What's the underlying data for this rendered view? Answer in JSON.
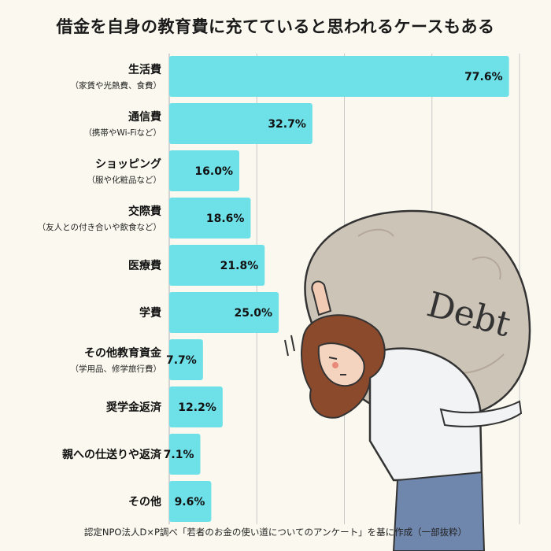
{
  "chart_data": {
    "type": "bar",
    "orientation": "horizontal",
    "title": "借金を自身の教育費に充てていると思われるケースもある",
    "categories": [
      {
        "label": "生活費",
        "note": "（家賃や光熱費、食費）"
      },
      {
        "label": "通信費",
        "note": "（携帯やWi-Fiなど）"
      },
      {
        "label": "ショッピング",
        "note": "（服や化粧品など）"
      },
      {
        "label": "交際費",
        "note": "（友人との付き合いや飲食など）"
      },
      {
        "label": "医療費",
        "note": ""
      },
      {
        "label": "学費",
        "note": ""
      },
      {
        "label": "その他教育資金",
        "note": "（学用品、修学旅行費）"
      },
      {
        "label": "奨学金返済",
        "note": ""
      },
      {
        "label": "親への仕送りや返済",
        "note": ""
      },
      {
        "label": "その他",
        "note": ""
      }
    ],
    "values": [
      77.6,
      32.7,
      16.0,
      18.6,
      21.8,
      25.0,
      7.7,
      12.2,
      7.1,
      9.6
    ],
    "value_labels": [
      "77.6%",
      "32.7%",
      "16.0%",
      "18.6%",
      "21.8%",
      "25.0%",
      "7.7%",
      "12.2%",
      "7.1%",
      "9.6%"
    ],
    "xlim": [
      0,
      80
    ],
    "grid": true,
    "bar_color": "#6ee0e8",
    "grid_color": "#c8c8c8"
  },
  "illustration": {
    "sack_text": "Debt"
  },
  "source": "認定NPO法人D×P調べ「若者のお金の使い道についてのアンケート」を基に作成（一部抜粋）"
}
